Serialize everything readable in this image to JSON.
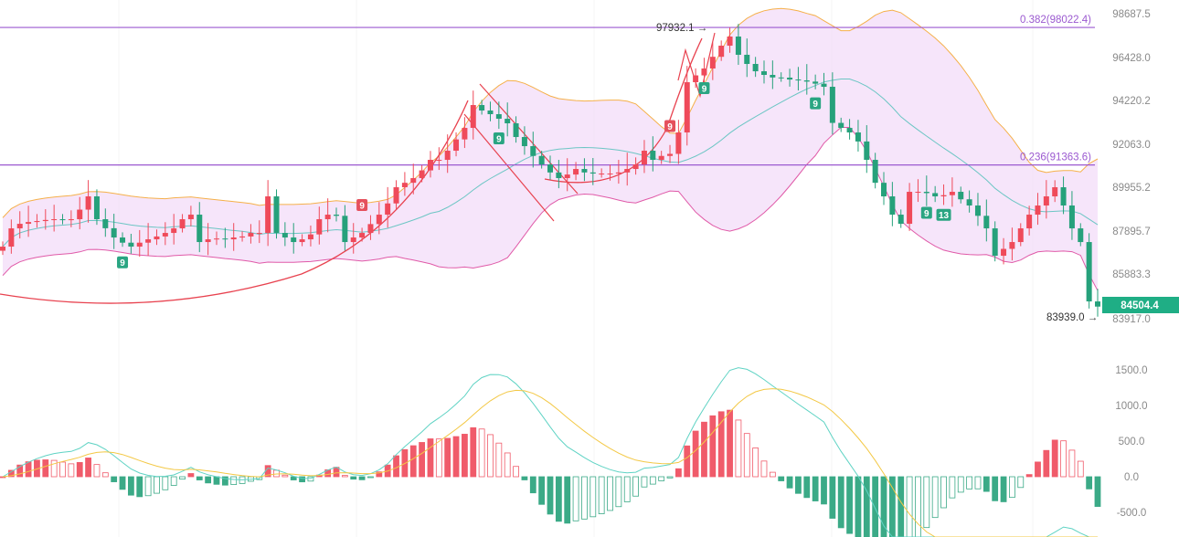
{
  "chart_data": {
    "type": "candlestick",
    "title": "",
    "price_axis": {
      "ticks": [
        "98687.5",
        "96428.0",
        "94220.2",
        "92063.0",
        "89955.2",
        "87895.7",
        "85883.3",
        "83917.0"
      ],
      "ylim": [
        83917.0,
        98687.5
      ]
    },
    "macd_axis": {
      "ticks": [
        "1500.0",
        "1000.0",
        "500.0",
        "0.0",
        "-500.0"
      ],
      "ylim": [
        -850,
        1700
      ]
    },
    "closes": [
      87409,
      88293,
      88514,
      88600,
      88647,
      88700,
      88736,
      88690,
      88736,
      89200,
      89842,
      88736,
      88300,
      87851,
      87600,
      87409,
      87600,
      87762,
      87900,
      88072,
      88293,
      88736,
      88957,
      87630,
      87762,
      87800,
      87762,
      87851,
      87900,
      88072,
      88072,
      89842,
      88072,
      87851,
      87630,
      87762,
      88000,
      88736,
      88957,
      88900,
      87630,
      87851,
      88072,
      88500,
      88957,
      89500,
      90284,
      90500,
      90726,
      91100,
      91611,
      91611,
      92053,
      92600,
      93158,
      94264,
      94000,
      93822,
      93600,
      93380,
      92716,
      92274,
      91800,
      91389,
      91000,
      90726,
      90900,
      91168,
      91000,
      90947,
      90947,
      90947,
      91000,
      91168,
      91389,
      92053,
      91611,
      91800,
      91900,
      92937,
      95370,
      95700,
      96034,
      96600,
      97139,
      97582,
      96698,
      96255,
      95900,
      95724,
      95600,
      95591,
      95500,
      95458,
      95400,
      95300,
      95149,
      93400,
      93158,
      92937,
      92500,
      91611,
      90500,
      89842,
      88957,
      88514,
      90063,
      90063,
      90000,
      89842,
      89900,
      90063,
      89700,
      89400,
      88900,
      88293,
      86967,
      87300,
      87630,
      88293,
      88957,
      89400,
      89842,
      90284,
      89400,
      88293,
      87630,
      84755,
      84504.4
    ],
    "fib_levels": [
      {
        "label": "0.382(98022.4)",
        "value": 98022.4
      },
      {
        "label": "0.236(91363.6)",
        "value": 91363.6
      }
    ],
    "annotations": {
      "high_label": "97932.1",
      "low_label": "83939.0",
      "arrow": "→",
      "current_price": "84504.4"
    },
    "td_badges": [
      {
        "index": 14,
        "text": "9",
        "color": "green",
        "pos": "below"
      },
      {
        "index": 42,
        "text": "9",
        "color": "red",
        "pos": "above"
      },
      {
        "index": 58,
        "text": "9",
        "color": "green",
        "pos": "below"
      },
      {
        "index": 78,
        "text": "9",
        "color": "red",
        "pos": "above"
      },
      {
        "index": 82,
        "text": "9",
        "color": "green",
        "pos": "below"
      },
      {
        "index": 95,
        "text": "9",
        "color": "green",
        "pos": "below"
      },
      {
        "index": 108,
        "text": "9",
        "color": "green",
        "pos": "below"
      },
      {
        "index": 110,
        "text": "13",
        "color": "green",
        "pos": "below"
      }
    ],
    "colors": {
      "up": "#ef4a5a",
      "down": "#26a17b",
      "band_fill": "#f3dcf8",
      "upper_band": "#f5b04a",
      "lower_band": "#e05aa8",
      "mid_band": "#6cc6c4",
      "fib": "#9b59d0",
      "macd_line": "#5fd3c4",
      "signal_line": "#f3c845",
      "drawing": "#e8424f"
    }
  }
}
